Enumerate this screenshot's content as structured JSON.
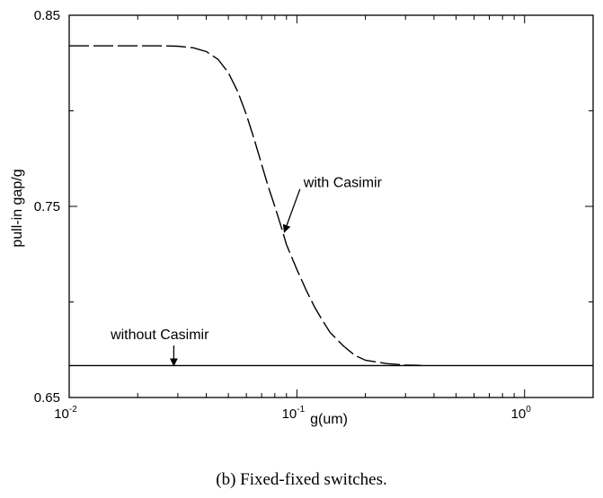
{
  "chart_data": {
    "type": "line",
    "xscale": "log",
    "xlim": [
      0.01,
      2
    ],
    "ylim": [
      0.65,
      0.85
    ],
    "xlabel": "g(um)",
    "ylabel": "pull-in gap/g",
    "grid": false,
    "x_ticks": [
      {
        "value": 0.01,
        "base": "10",
        "exp": "-2"
      },
      {
        "value": 0.1,
        "base": "10",
        "exp": "-1"
      },
      {
        "value": 1,
        "base": "10",
        "exp": "0"
      }
    ],
    "y_ticks": [
      {
        "value": 0.65,
        "label": "0.65"
      },
      {
        "value": 0.75,
        "label": "0.75"
      },
      {
        "value": 0.85,
        "label": "0.85"
      }
    ],
    "series": [
      {
        "style": "dashed",
        "points": [
          [
            0.01,
            0.834
          ],
          [
            0.015,
            0.834
          ],
          [
            0.02,
            0.834
          ],
          [
            0.025,
            0.834
          ],
          [
            0.03,
            0.8338
          ],
          [
            0.035,
            0.833
          ],
          [
            0.04,
            0.831
          ],
          [
            0.045,
            0.827
          ],
          [
            0.05,
            0.82
          ],
          [
            0.055,
            0.81
          ],
          [
            0.06,
            0.798
          ],
          [
            0.065,
            0.785
          ],
          [
            0.07,
            0.772
          ],
          [
            0.075,
            0.76
          ],
          [
            0.08,
            0.75
          ],
          [
            0.085,
            0.74
          ],
          [
            0.09,
            0.73
          ],
          [
            0.1,
            0.717
          ],
          [
            0.11,
            0.706
          ],
          [
            0.12,
            0.697
          ],
          [
            0.13,
            0.69
          ],
          [
            0.14,
            0.684
          ],
          [
            0.16,
            0.677
          ],
          [
            0.18,
            0.672
          ],
          [
            0.2,
            0.6695
          ],
          [
            0.25,
            0.6677
          ],
          [
            0.3,
            0.667
          ],
          [
            0.35,
            0.6668
          ]
        ]
      },
      {
        "style": "solid",
        "points": [
          [
            0.01,
            0.6667
          ],
          [
            2,
            0.6667
          ]
        ]
      }
    ],
    "annotations": [
      {
        "text": "with Casimir",
        "text_at": [
          0.107,
          0.76
        ],
        "arrow_to": [
          0.088,
          0.7365
        ]
      },
      {
        "text": "without Casimir",
        "text_at": [
          0.0152,
          0.6805
        ],
        "arrow_to": [
          0.0288,
          0.6667
        ]
      }
    ]
  },
  "caption": "(b)  Fixed-fixed switches."
}
